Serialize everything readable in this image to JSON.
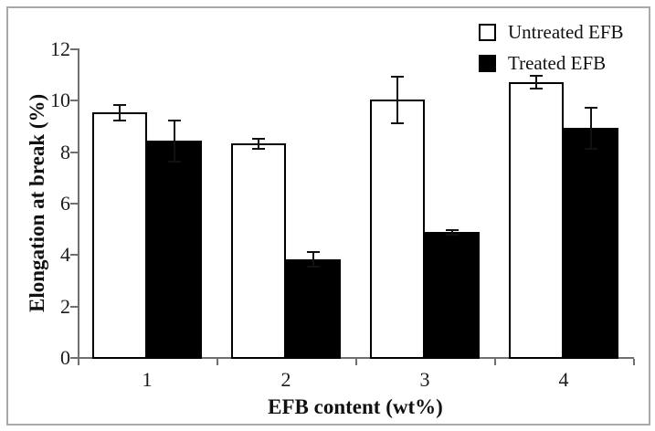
{
  "figure": {
    "background_color": "#ffffff",
    "frame_color": "#a9a9a9",
    "axis_color": "#6f6f6f",
    "text_color": "#111111"
  },
  "chart_data": {
    "type": "bar",
    "title": "",
    "xlabel": "EFB content (wt%)",
    "ylabel": "Elongation at break (%)",
    "categories": [
      "1",
      "2",
      "3",
      "4"
    ],
    "series": [
      {
        "name": "Untreated EFB",
        "fill": "#ffffff",
        "outline": "#000000",
        "values": [
          9.5,
          8.3,
          10.0,
          10.7
        ],
        "errors": [
          0.3,
          0.2,
          0.9,
          0.25
        ]
      },
      {
        "name": "Treated EFB",
        "fill": "#000000",
        "outline": "#000000",
        "values": [
          8.4,
          3.8,
          4.85,
          8.9
        ],
        "errors": [
          0.8,
          0.3,
          0.1,
          0.8
        ]
      }
    ],
    "ylim": [
      0,
      12
    ],
    "yticks": [
      0,
      2,
      4,
      6,
      8,
      10,
      12
    ],
    "error_bars": true,
    "grid": false,
    "legend_position": "top-right"
  }
}
